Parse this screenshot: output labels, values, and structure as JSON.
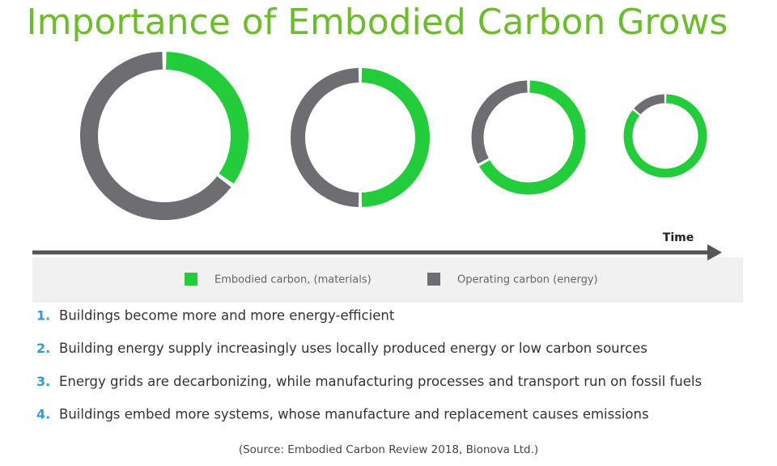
{
  "chart_data": {
    "type": "donut",
    "title": "Importance of Embodied Carbon Grows",
    "x_label": "Time",
    "series": [
      {
        "name": "Embodied carbon, (materials)",
        "color": "#22cc3a",
        "values": [
          35,
          50,
          67,
          86
        ]
      },
      {
        "name": "Operating carbon (energy)",
        "color": "#6d6d72",
        "values": [
          65,
          50,
          33,
          14
        ]
      }
    ]
  },
  "notes": {
    "items": [
      {
        "number": "1.",
        "text": "Buildings become more and more energy-efficient"
      },
      {
        "number": "2.",
        "text": "Building energy supply increasingly uses locally produced energy or low carbon sources"
      },
      {
        "number": "3.",
        "text": "Energy grids are decarbonizing, while manufacturing processes and transport run on fossil fuels"
      },
      {
        "number": "4.",
        "text": "Buildings embed more systems, whose manufacture and replacement causes emissions"
      }
    ],
    "source": "(Source: Embodied Carbon Review 2018, Bionova Ltd.)"
  }
}
